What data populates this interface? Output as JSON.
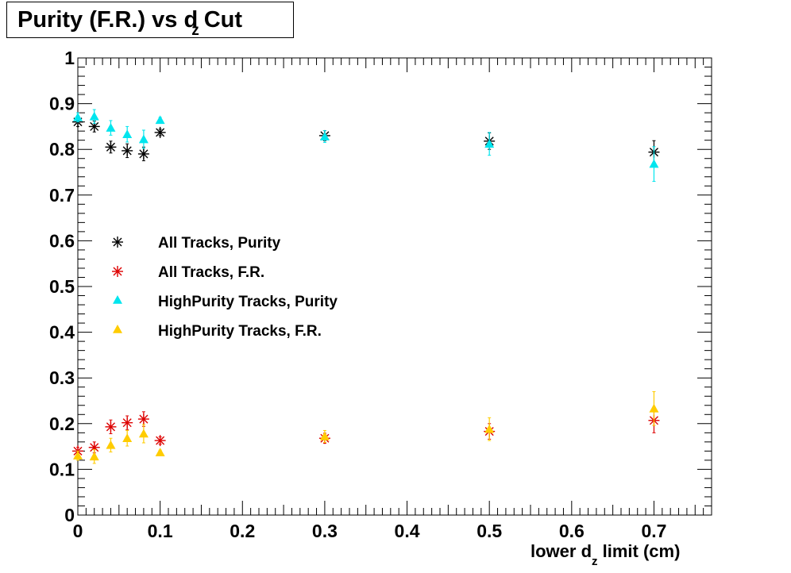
{
  "chart_data": {
    "type": "scatter",
    "title": {
      "main": "Purity (F.R.) vs d",
      "sub": "z",
      "tail": "Cut"
    },
    "xlabel": {
      "main": "lower d",
      "sub": "z",
      "tail": " limit (cm)"
    },
    "ylabel": "",
    "xlim": [
      0,
      0.77
    ],
    "ylim": [
      0,
      1
    ],
    "x_ticks": [
      0,
      0.1,
      0.2,
      0.3,
      0.4,
      0.5,
      0.6,
      0.7
    ],
    "x_tick_labels": [
      "0",
      "0.1",
      "0.2",
      "0.3",
      "0.4",
      "0.5",
      "0.6",
      "0.7"
    ],
    "y_ticks": [
      0,
      0.1,
      0.2,
      0.3,
      0.4,
      0.5,
      0.6,
      0.7,
      0.8,
      0.9,
      1
    ],
    "y_tick_labels": [
      "0",
      "0.1",
      "0.2",
      "0.3",
      "0.4",
      "0.5",
      "0.6",
      "0.7",
      "0.8",
      "0.9",
      "1"
    ],
    "grid": false,
    "legend_position": "middle-left",
    "series": [
      {
        "name": "All Tracks, Purity",
        "marker": "star",
        "color": "#000000",
        "x": [
          0,
          0.02,
          0.04,
          0.06,
          0.08,
          0.1,
          0.3,
          0.5,
          0.7
        ],
        "y": [
          0.86,
          0.85,
          0.805,
          0.797,
          0.79,
          0.837,
          0.83,
          0.818,
          0.794
        ],
        "err": [
          0.01,
          0.012,
          0.013,
          0.015,
          0.015,
          0.007,
          0.011,
          0.018,
          0.025
        ]
      },
      {
        "name": "All Tracks, F.R.",
        "marker": "star",
        "color": "#dd0000",
        "x": [
          0,
          0.02,
          0.04,
          0.06,
          0.08,
          0.1,
          0.3,
          0.5,
          0.7
        ],
        "y": [
          0.14,
          0.148,
          0.193,
          0.202,
          0.21,
          0.163,
          0.168,
          0.183,
          0.207
        ],
        "err": [
          0.008,
          0.012,
          0.015,
          0.015,
          0.016,
          0.008,
          0.011,
          0.017,
          0.027
        ]
      },
      {
        "name": "HighPurity Tracks, Purity",
        "marker": "triangle",
        "color": "#00e5ee",
        "x": [
          0,
          0.02,
          0.04,
          0.06,
          0.08,
          0.1,
          0.3,
          0.5,
          0.7
        ],
        "y": [
          0.87,
          0.872,
          0.847,
          0.833,
          0.822,
          0.864,
          0.828,
          0.812,
          0.768
        ],
        "err": [
          0.01,
          0.015,
          0.016,
          0.017,
          0.02,
          0.006,
          0.013,
          0.025,
          0.038
        ]
      },
      {
        "name": "HighPurity Tracks, F.R.",
        "marker": "triangle",
        "color": "#ffcc00",
        "x": [
          0,
          0.02,
          0.04,
          0.06,
          0.08,
          0.1,
          0.3,
          0.5,
          0.7
        ],
        "y": [
          0.13,
          0.128,
          0.153,
          0.168,
          0.178,
          0.137,
          0.172,
          0.188,
          0.233
        ],
        "err": [
          0.01,
          0.015,
          0.015,
          0.017,
          0.02,
          0.005,
          0.013,
          0.025,
          0.037
        ]
      }
    ]
  }
}
